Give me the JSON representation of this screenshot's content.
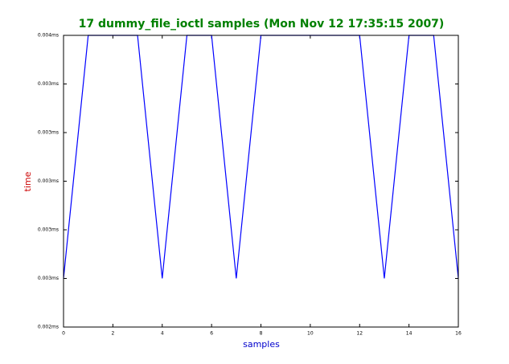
{
  "chart_data": {
    "type": "line",
    "title": "17 dummy_file_ioctl samples (Mon Nov 12 17:35:15 2007)",
    "xlabel": "samples",
    "ylabel": "time",
    "x": [
      0,
      1,
      2,
      3,
      4,
      5,
      6,
      7,
      8,
      9,
      10,
      11,
      12,
      13,
      14,
      15,
      16
    ],
    "series": [
      {
        "color": "#0000ff",
        "values": [
          0.0026,
          0.0036,
          0.0036,
          0.0036,
          0.0026,
          0.0036,
          0.0036,
          0.0026,
          0.0036,
          0.0036,
          0.0036,
          0.0036,
          0.0036,
          0.0026,
          0.0036,
          0.0036,
          0.0026
        ]
      }
    ],
    "xlim": [
      0,
      16
    ],
    "xticks": [
      0,
      2,
      4,
      6,
      8,
      10,
      12,
      14,
      16
    ],
    "ylim": [
      0.0024,
      0.0036
    ],
    "yticks": [
      {
        "value": 0.0024,
        "label": "0.002ms"
      },
      {
        "value": 0.0026,
        "label": "0.003ms"
      },
      {
        "value": 0.0028,
        "label": "0.003ms"
      },
      {
        "value": 0.003,
        "label": "0.003ms"
      },
      {
        "value": 0.0032,
        "label": "0.003ms"
      },
      {
        "value": 0.0034,
        "label": "0.003ms"
      },
      {
        "value": 0.0036,
        "label": "0.004ms"
      }
    ],
    "grid": false
  }
}
